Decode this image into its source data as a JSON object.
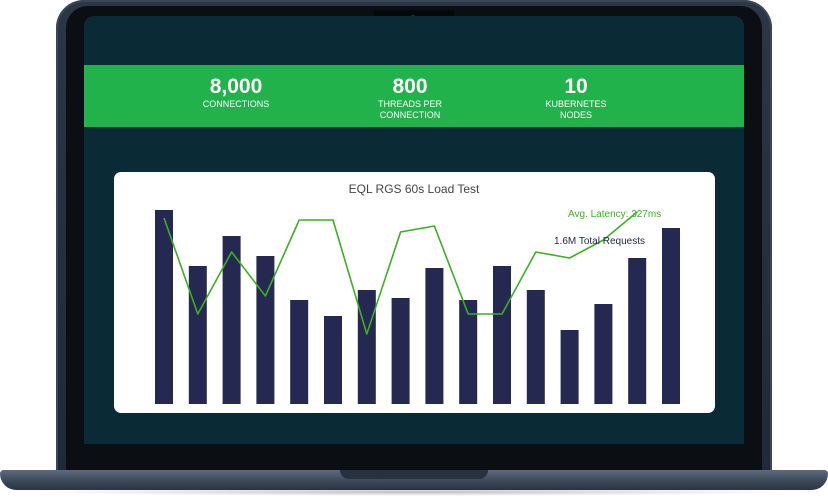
{
  "stats": [
    {
      "value": "8,000",
      "label_line1": "CONNECTIONS",
      "label_line2": ""
    },
    {
      "value": "800",
      "label_line1": "THREADS PER",
      "label_line2": "CONNECTION"
    },
    {
      "value": "10",
      "label_line1": "KUBERNETES",
      "label_line2": "NODES"
    }
  ],
  "colors": {
    "bar": "#252850",
    "line": "#3cb021",
    "stats_bar": "#22b24c",
    "screen": "#0a2a36"
  },
  "chart_data": {
    "type": "bar",
    "title": "EQL RGS 60s Load Test",
    "annotations": [
      "Avg. Latency: 327ms",
      "1.6M Total Requests"
    ],
    "series": [
      {
        "values": [
          97,
          69,
          84,
          74,
          52,
          44,
          57,
          53,
          68,
          52,
          69,
          57,
          37,
          50,
          73,
          88
        ]
      },
      {
        "values": [
          93,
          45,
          76,
          54,
          92,
          92,
          35,
          86,
          89,
          45,
          45,
          76,
          73,
          82,
          96
        ]
      }
    ],
    "ylim": [
      0,
      100
    ]
  }
}
